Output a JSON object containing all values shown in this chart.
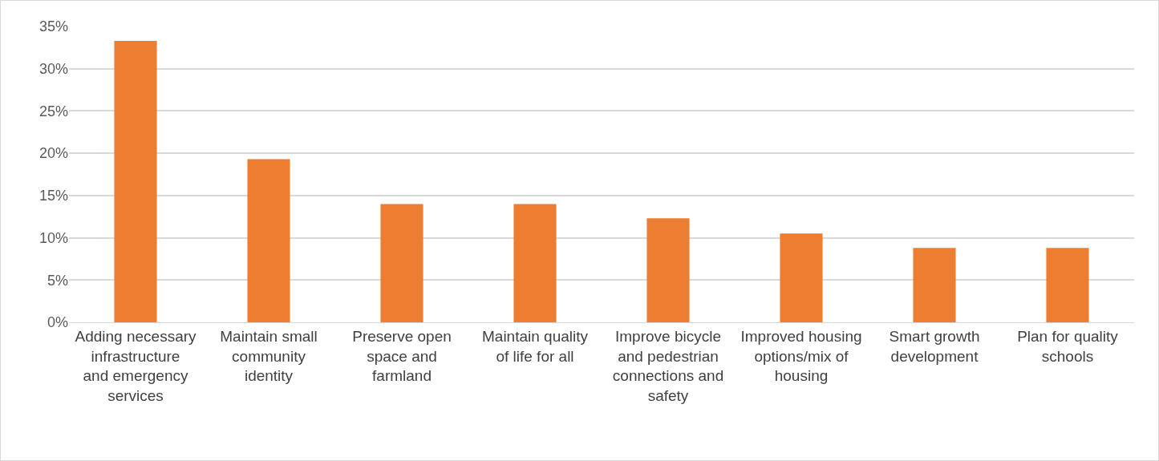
{
  "chart_data": {
    "type": "bar",
    "categories": [
      "Adding necessary infrastructure and emergency services",
      "Maintain small community identity",
      "Preserve open space and farmland",
      "Maintain quality of life for all",
      "Improve bicycle and pedestrian connections and safety",
      "Improved housing options/mix of housing",
      "Smart growth development",
      "Plan for quality schools"
    ],
    "values": [
      33.3,
      19.3,
      14.0,
      14.0,
      12.3,
      10.5,
      8.8,
      8.8
    ],
    "color": "#ed7d31",
    "ylim": [
      0,
      35
    ],
    "yticks": [
      {
        "value": 0,
        "label": "0%"
      },
      {
        "value": 5,
        "label": "5%"
      },
      {
        "value": 10,
        "label": "10%"
      },
      {
        "value": 15,
        "label": "15%"
      },
      {
        "value": 20,
        "label": "20%"
      },
      {
        "value": 25,
        "label": "25%"
      },
      {
        "value": 30,
        "label": "30%"
      },
      {
        "value": 35,
        "label": "35%"
      }
    ],
    "grid": "y"
  }
}
